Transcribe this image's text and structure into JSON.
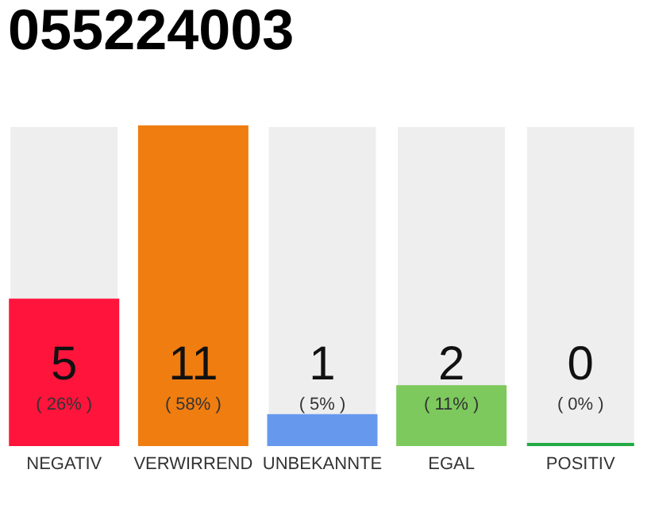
{
  "chart_data": {
    "type": "bar",
    "title": "055224003",
    "categories": [
      "NEGATIV",
      "VERWIRREND",
      "UNBEKANNTE",
      "EGAL",
      "POSITIV"
    ],
    "values": [
      5,
      11,
      1,
      2,
      0
    ],
    "colors": [
      "#ff143c",
      "#f07d0f",
      "#6699ee",
      "#7dc95d",
      "#22aa44"
    ],
    "data_labels": true,
    "annotations": [
      "( 26% )",
      "( 58% )",
      "( 5% )",
      "( 11% )",
      "( 0% )"
    ]
  }
}
